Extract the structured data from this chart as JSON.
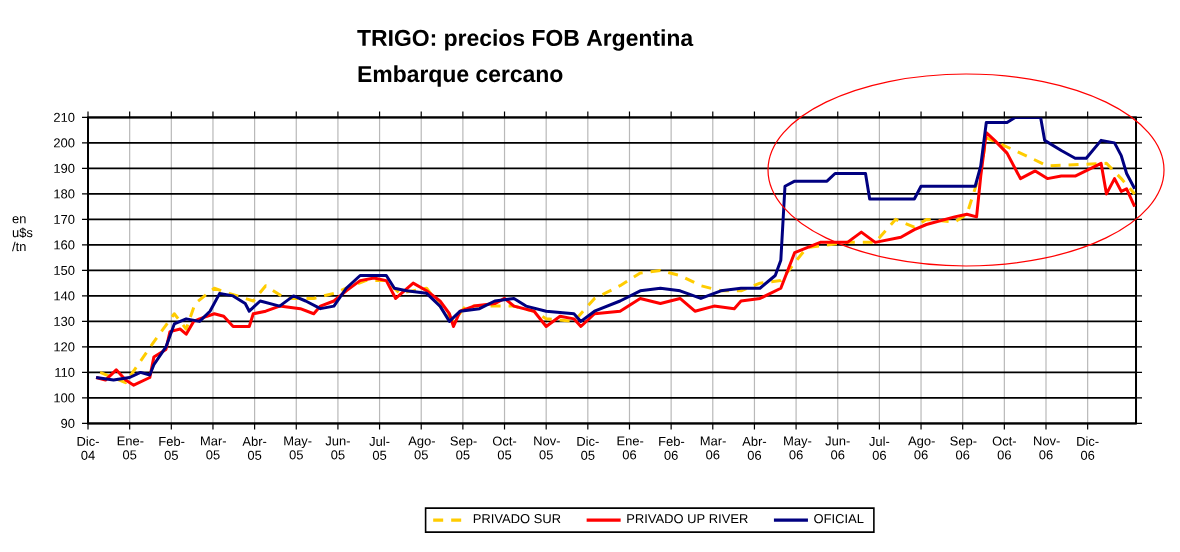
{
  "chart_data": {
    "type": "line",
    "title": "TRIGO: precios FOB Argentina",
    "subtitle": "Embarque cercano",
    "ylabel": "en u$s /tn",
    "xlim": [
      "2004-12-01",
      "2007-01-06"
    ],
    "ylim": [
      90,
      210
    ],
    "xticks": [
      {
        "value": "2004-12-01",
        "label": "Dic-04"
      },
      {
        "value": "2005-01-01",
        "label": "Ene-05"
      },
      {
        "value": "2005-02-01",
        "label": "Feb-05"
      },
      {
        "value": "2005-03-01",
        "label": "Mar-05"
      },
      {
        "value": "2005-04-01",
        "label": "Abr-05"
      },
      {
        "value": "2005-05-01",
        "label": "May-05"
      },
      {
        "value": "2005-06-01",
        "label": "Jun-05"
      },
      {
        "value": "2005-07-01",
        "label": "Jul-05"
      },
      {
        "value": "2005-08-01",
        "label": "Ago-05"
      },
      {
        "value": "2005-09-01",
        "label": "Sep-05"
      },
      {
        "value": "2005-10-01",
        "label": "Oct-05"
      },
      {
        "value": "2005-11-01",
        "label": "Nov-05"
      },
      {
        "value": "2005-12-01",
        "label": "Dic-05"
      },
      {
        "value": "2006-01-01",
        "label": "Ene-06"
      },
      {
        "value": "2006-02-01",
        "label": "Feb-06"
      },
      {
        "value": "2006-03-01",
        "label": "Mar-06"
      },
      {
        "value": "2006-04-01",
        "label": "Abr-06"
      },
      {
        "value": "2006-05-01",
        "label": "May-06"
      },
      {
        "value": "2006-06-01",
        "label": "Jun-06"
      },
      {
        "value": "2006-07-01",
        "label": "Jul-06"
      },
      {
        "value": "2006-08-01",
        "label": "Ago-06"
      },
      {
        "value": "2006-09-01",
        "label": "Sep-06"
      },
      {
        "value": "2006-10-01",
        "label": "Oct-06"
      },
      {
        "value": "2006-11-01",
        "label": "Nov-06"
      },
      {
        "value": "2006-12-01",
        "label": "Dic-06"
      }
    ],
    "yticks": [
      90,
      100,
      110,
      120,
      130,
      140,
      150,
      160,
      170,
      180,
      190,
      200,
      210
    ],
    "grid": true,
    "legend": "bottom",
    "marker": "none",
    "series": [
      {
        "name": "PRIVADO SUR",
        "color": "#ffcc00",
        "line_style": "dashed",
        "x": [
          "2004-12-10",
          "2004-12-29",
          "2005-01-19",
          "2005-02-03",
          "2005-02-11",
          "2005-02-17",
          "2005-03-02",
          "2005-03-13",
          "2005-03-31",
          "2005-04-09",
          "2005-04-23",
          "2005-05-14",
          "2005-05-29",
          "2005-06-07",
          "2005-06-21",
          "2005-07-06",
          "2005-07-16",
          "2005-08-05",
          "2005-08-15",
          "2005-08-25",
          "2005-09-03",
          "2005-09-24",
          "2005-10-08",
          "2005-10-23",
          "2005-11-01",
          "2005-11-21",
          "2005-12-06",
          "2005-12-25",
          "2006-01-09",
          "2006-01-24",
          "2006-02-07",
          "2006-02-21",
          "2006-03-07",
          "2006-03-22",
          "2006-04-05",
          "2006-04-20",
          "2006-04-30",
          "2006-05-09",
          "2006-06-08",
          "2006-06-28",
          "2006-07-13",
          "2006-07-27",
          "2006-08-05",
          "2006-08-26",
          "2006-09-04",
          "2006-09-14",
          "2006-09-18",
          "2006-10-09",
          "2006-11-02",
          "2006-12-15",
          "2006-12-26",
          "2007-01-05"
        ],
        "values": [
          110,
          106,
          122,
          133,
          127,
          137,
          143,
          141,
          138,
          144,
          139,
          139,
          141,
          143,
          146,
          146,
          141,
          143,
          136,
          130,
          136,
          136,
          136,
          134,
          131,
          130,
          139,
          144,
          149,
          150,
          148,
          144,
          142,
          142,
          145,
          146,
          153,
          159,
          161,
          161,
          170,
          167,
          170,
          169,
          172,
          189,
          202,
          197,
          191,
          192,
          186,
          180
        ]
      },
      {
        "name": "PRIVADO UP RIVER",
        "color": "#ff0000",
        "line_style": "solid",
        "x": [
          "2004-12-07",
          "2004-12-14",
          "2004-12-22",
          "2004-12-29",
          "2005-01-04",
          "2005-01-16",
          "2005-01-19",
          "2005-01-28",
          "2005-01-31",
          "2005-02-07",
          "2005-02-11",
          "2005-02-16",
          "2005-02-20",
          "2005-03-02",
          "2005-03-09",
          "2005-03-16",
          "2005-03-28",
          "2005-03-31",
          "2005-04-09",
          "2005-04-19",
          "2005-05-04",
          "2005-05-14",
          "2005-05-19",
          "2005-05-29",
          "2005-06-07",
          "2005-06-17",
          "2005-06-27",
          "2005-07-06",
          "2005-07-13",
          "2005-07-26",
          "2005-08-05",
          "2005-08-15",
          "2005-08-22",
          "2005-08-25",
          "2005-08-30",
          "2005-09-09",
          "2005-09-24",
          "2005-10-01",
          "2005-10-08",
          "2005-10-23",
          "2005-11-01",
          "2005-11-11",
          "2005-11-21",
          "2005-11-26",
          "2005-12-06",
          "2005-12-25",
          "2006-01-09",
          "2006-01-24",
          "2006-02-07",
          "2006-02-17",
          "2006-03-02",
          "2006-03-17",
          "2006-03-22",
          "2006-04-05",
          "2006-04-20",
          "2006-04-25",
          "2006-04-30",
          "2006-05-19",
          "2006-06-08",
          "2006-06-18",
          "2006-06-28",
          "2006-07-17",
          "2006-07-27",
          "2006-08-05",
          "2006-08-26",
          "2006-09-04",
          "2006-09-11",
          "2006-09-14",
          "2006-09-18",
          "2006-09-24",
          "2006-10-03",
          "2006-10-13",
          "2006-10-24",
          "2006-11-02",
          "2006-11-12",
          "2006-11-22",
          "2006-12-11",
          "2006-12-15",
          "2006-12-21",
          "2006-12-26",
          "2006-12-30",
          "2007-01-05"
        ],
        "values": [
          108,
          107,
          111,
          107,
          105,
          108,
          116,
          119,
          126,
          127,
          125,
          130,
          131,
          133,
          132,
          128,
          128,
          133,
          134,
          136,
          135,
          133,
          136,
          138,
          142,
          146,
          147,
          146,
          139,
          145,
          142,
          138,
          133,
          128,
          134,
          136,
          137,
          139,
          136,
          134,
          128,
          132,
          131,
          128,
          133,
          134,
          139,
          137,
          139,
          134,
          136,
          135,
          138,
          139,
          143,
          150,
          157,
          161,
          161,
          165,
          161,
          163,
          166,
          168,
          171,
          172,
          171,
          187,
          204,
          201,
          196,
          186,
          189,
          186,
          187,
          187,
          192,
          180,
          186,
          181,
          182,
          175
        ]
      },
      {
        "name": "OFICIAL",
        "color": "#000080",
        "line_style": "solid",
        "x": [
          "2004-12-07",
          "2004-12-20",
          "2005-01-01",
          "2005-01-09",
          "2005-01-16",
          "2005-01-19",
          "2005-01-28",
          "2005-02-03",
          "2005-02-11",
          "2005-02-20",
          "2005-02-27",
          "2005-03-06",
          "2005-03-16",
          "2005-03-25",
          "2005-03-28",
          "2005-04-05",
          "2005-04-19",
          "2005-04-29",
          "2005-05-08",
          "2005-05-19",
          "2005-05-29",
          "2005-06-07",
          "2005-06-17",
          "2005-07-06",
          "2005-07-12",
          "2005-07-21",
          "2005-08-05",
          "2005-08-15",
          "2005-08-22",
          "2005-08-30",
          "2005-09-13",
          "2005-09-24",
          "2005-10-08",
          "2005-10-17",
          "2005-11-01",
          "2005-11-21",
          "2005-11-26",
          "2005-12-06",
          "2005-12-25",
          "2006-01-09",
          "2006-01-24",
          "2006-02-07",
          "2006-02-21",
          "2006-03-07",
          "2006-03-22",
          "2006-04-05",
          "2006-04-16",
          "2006-04-20",
          "2006-04-23",
          "2006-04-30",
          "2006-05-24",
          "2006-05-30",
          "2006-06-21",
          "2006-06-24",
          "2006-07-27",
          "2006-08-01",
          "2006-09-10",
          "2006-09-14",
          "2006-09-18",
          "2006-10-03",
          "2006-10-09",
          "2006-10-28",
          "2006-10-31",
          "2006-11-12",
          "2006-11-22",
          "2006-11-30",
          "2006-12-11",
          "2006-12-21",
          "2006-12-26",
          "2006-12-30",
          "2007-01-05"
        ],
        "values": [
          108,
          107,
          108,
          110,
          109,
          113,
          120,
          129,
          131,
          130,
          134,
          141,
          140,
          137,
          134,
          138,
          136,
          140,
          138,
          135,
          136,
          143,
          148,
          148,
          143,
          142,
          141,
          136,
          130,
          134,
          135,
          138,
          139,
          136,
          134,
          133,
          130,
          134,
          138,
          142,
          143,
          142,
          139,
          142,
          143,
          143,
          148,
          154,
          183,
          185,
          185,
          188,
          188,
          178,
          178,
          183,
          183,
          191,
          208,
          208,
          210,
          210,
          201,
          197,
          194,
          194,
          201,
          200,
          195,
          188,
          182
        ]
      }
    ]
  }
}
